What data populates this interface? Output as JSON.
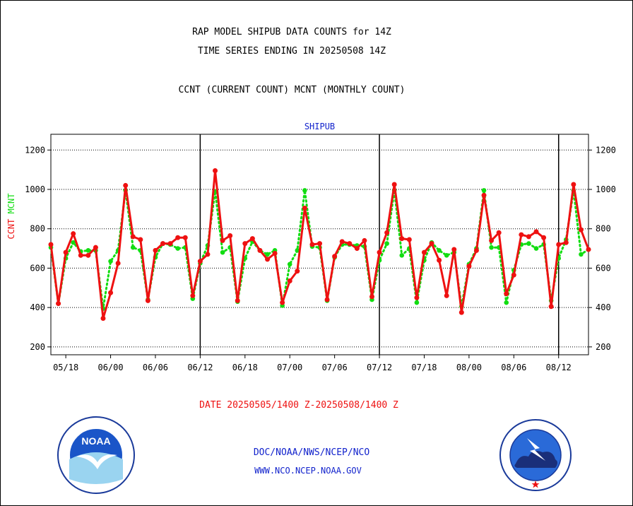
{
  "title_line1": "RAP MODEL SHIPUB DATA COUNTS for 14Z",
  "title_line2": "TIME SERIES ENDING IN 20250508 14Z",
  "subtitle": "CCNT (CURRENT COUNT) MCNT (MONTHLY COUNT)",
  "date_range": "DATE 20250505/1400 Z-20250508/1400 Z",
  "footer_line1": "DOC/NOAA/NWS/NCEP/NCO",
  "footer_line2": "WWW.NCO.NCEP.NOAA.GOV",
  "logos": {
    "left": "NOAA",
    "right": "NATIONAL WEATHER SERVICE"
  },
  "colors": {
    "ccnt": "#ee1111",
    "mcnt": "#11dd11",
    "panel_title": "#1122cc",
    "footer": "#1122cc",
    "date": "#ee1111"
  },
  "chart_data": {
    "type": "line",
    "title": "SHIPUB",
    "ylabel_left": [
      "CCNT",
      "MCNT"
    ],
    "ylim": [
      160,
      1280
    ],
    "yticks": [
      200,
      400,
      600,
      800,
      1000,
      1200
    ],
    "grid": true,
    "x_tick_labels": [
      "05/18",
      "06/00",
      "06/06",
      "06/12",
      "06/18",
      "07/00",
      "07/06",
      "07/12",
      "07/18",
      "08/00",
      "08/06",
      "08/12"
    ],
    "day_dividers": [
      "06/12",
      "07/12",
      "08/12"
    ],
    "series": [
      {
        "name": "CCNT",
        "values": [
          720,
          420,
          680,
          775,
          665,
          665,
          705,
          345,
          475,
          625,
          1020,
          760,
          745,
          435,
          690,
          725,
          725,
          755,
          755,
          460,
          635,
          670,
          1095,
          740,
          765,
          435,
          725,
          750,
          690,
          645,
          675,
          425,
          535,
          585,
          905,
          720,
          725,
          440,
          660,
          735,
          725,
          700,
          740,
          455,
          680,
          780,
          1025,
          750,
          745,
          450,
          680,
          725,
          640,
          460,
          695,
          375,
          610,
          690,
          970,
          740,
          780,
          470,
          565,
          770,
          760,
          785,
          755,
          405,
          720,
          730,
          1025,
          795,
          695
        ]
      },
      {
        "name": "MCNT",
        "values": [
          705,
          420,
          650,
          730,
          685,
          690,
          690,
          395,
          635,
          690,
          995,
          705,
          690,
          440,
          655,
          725,
          720,
          700,
          705,
          445,
          625,
          715,
          990,
          680,
          705,
          430,
          650,
          735,
          690,
          670,
          690,
          410,
          620,
          690,
          995,
          710,
          705,
          435,
          655,
          720,
          720,
          715,
          710,
          440,
          640,
          725,
          995,
          665,
          700,
          425,
          640,
          730,
          690,
          665,
          680,
          405,
          620,
          700,
          995,
          705,
          705,
          425,
          590,
          720,
          725,
          700,
          720,
          435,
          650,
          745,
          995,
          670,
          695
        ]
      }
    ]
  }
}
